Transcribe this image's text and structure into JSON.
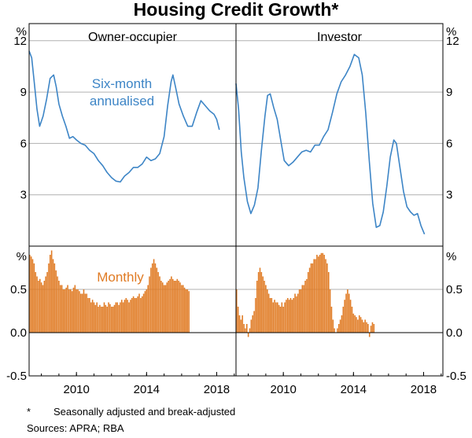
{
  "chart_data": {
    "type": "line+bar",
    "title": "Housing Credit Growth*",
    "footnote_marker": "*",
    "footnote": "Seasonally adjusted and break-adjusted",
    "sources": "Sources: APRA; RBA",
    "x_ticks": [
      "2010",
      "2014",
      "2018"
    ],
    "x_range": [
      2007.3,
      2019.1
    ],
    "panels": {
      "top": {
        "unit": "%",
        "ylim": [
          0,
          13
        ],
        "yticks": [
          "3",
          "6",
          "9",
          "12"
        ],
        "ytick_values": [
          3,
          6,
          9,
          12
        ],
        "annotation": "Six-month annualised",
        "annotation_lines": [
          "Six-month",
          "annualised"
        ],
        "series": [
          {
            "name": "Owner-occupier",
            "label": "Owner-occupier",
            "color": "#3d85c6",
            "points": [
              [
                2007.3,
                11.4
              ],
              [
                2007.45,
                11.0
              ],
              [
                2007.6,
                9.5
              ],
              [
                2007.75,
                8.0
              ],
              [
                2007.9,
                7.0
              ],
              [
                2008.1,
                7.6
              ],
              [
                2008.3,
                8.6
              ],
              [
                2008.5,
                9.8
              ],
              [
                2008.7,
                10.0
              ],
              [
                2008.85,
                9.3
              ],
              [
                2009.0,
                8.3
              ],
              [
                2009.2,
                7.6
              ],
              [
                2009.4,
                7.0
              ],
              [
                2009.6,
                6.3
              ],
              [
                2009.8,
                6.4
              ],
              [
                2010.0,
                6.2
              ],
              [
                2010.25,
                6.0
              ],
              [
                2010.5,
                5.9
              ],
              [
                2010.75,
                5.6
              ],
              [
                2011.0,
                5.4
              ],
              [
                2011.25,
                5.0
              ],
              [
                2011.5,
                4.7
              ],
              [
                2011.75,
                4.3
              ],
              [
                2012.0,
                4.0
              ],
              [
                2012.25,
                3.8
              ],
              [
                2012.5,
                3.75
              ],
              [
                2012.75,
                4.1
              ],
              [
                2013.0,
                4.3
              ],
              [
                2013.25,
                4.6
              ],
              [
                2013.5,
                4.6
              ],
              [
                2013.75,
                4.8
              ],
              [
                2014.0,
                5.2
              ],
              [
                2014.25,
                5.0
              ],
              [
                2014.5,
                5.1
              ],
              [
                2014.75,
                5.4
              ],
              [
                2015.0,
                6.4
              ],
              [
                2015.2,
                8.2
              ],
              [
                2015.4,
                9.6
              ],
              [
                2015.5,
                10.0
              ],
              [
                2015.65,
                9.3
              ],
              [
                2015.85,
                8.3
              ],
              [
                2016.1,
                7.6
              ],
              [
                2016.35,
                7.0
              ],
              [
                2016.6,
                7.0
              ],
              [
                2016.85,
                7.8
              ],
              [
                2017.1,
                8.5
              ],
              [
                2017.35,
                8.2
              ],
              [
                2017.6,
                7.9
              ],
              [
                2017.85,
                7.7
              ],
              [
                2018.0,
                7.4
              ],
              [
                2018.15,
                6.8
              ]
            ]
          },
          {
            "name": "Investor",
            "label": "Investor",
            "color": "#3d85c6",
            "points": [
              [
                2007.3,
                9.5
              ],
              [
                2007.45,
                8.0
              ],
              [
                2007.6,
                5.5
              ],
              [
                2007.75,
                4.0
              ],
              [
                2007.95,
                2.6
              ],
              [
                2008.15,
                1.9
              ],
              [
                2008.35,
                2.4
              ],
              [
                2008.55,
                3.4
              ],
              [
                2008.75,
                5.6
              ],
              [
                2008.95,
                7.6
              ],
              [
                2009.1,
                8.8
              ],
              [
                2009.25,
                8.9
              ],
              [
                2009.45,
                8.1
              ],
              [
                2009.65,
                7.4
              ],
              [
                2009.85,
                6.2
              ],
              [
                2010.05,
                5.0
              ],
              [
                2010.3,
                4.7
              ],
              [
                2010.55,
                4.9
              ],
              [
                2010.8,
                5.2
              ],
              [
                2011.05,
                5.5
              ],
              [
                2011.3,
                5.6
              ],
              [
                2011.55,
                5.5
              ],
              [
                2011.8,
                5.9
              ],
              [
                2012.05,
                5.9
              ],
              [
                2012.3,
                6.4
              ],
              [
                2012.55,
                6.8
              ],
              [
                2012.8,
                7.8
              ],
              [
                2013.05,
                8.9
              ],
              [
                2013.3,
                9.6
              ],
              [
                2013.55,
                10.0
              ],
              [
                2013.8,
                10.5
              ],
              [
                2014.05,
                11.2
              ],
              [
                2014.3,
                11.0
              ],
              [
                2014.5,
                10.0
              ],
              [
                2014.7,
                7.8
              ],
              [
                2014.9,
                5.0
              ],
              [
                2015.1,
                2.5
              ],
              [
                2015.3,
                1.1
              ],
              [
                2015.5,
                1.2
              ],
              [
                2015.7,
                2.0
              ],
              [
                2015.9,
                3.5
              ],
              [
                2016.1,
                5.2
              ],
              [
                2016.3,
                6.2
              ],
              [
                2016.45,
                6.0
              ],
              [
                2016.65,
                4.6
              ],
              [
                2016.85,
                3.2
              ],
              [
                2017.05,
                2.3
              ],
              [
                2017.25,
                2.0
              ],
              [
                2017.45,
                1.8
              ],
              [
                2017.65,
                1.9
              ],
              [
                2017.85,
                1.2
              ],
              [
                2018.05,
                0.7
              ]
            ]
          }
        ]
      },
      "bottom": {
        "unit": "%",
        "ylim": [
          -0.5,
          1.0
        ],
        "yticks": [
          "-0.5",
          "0.0",
          "0.5"
        ],
        "ytick_values": [
          -0.5,
          0.0,
          0.5
        ],
        "annotation": "Monthly",
        "series": [
          {
            "name": "Owner-occupier monthly",
            "color": "#e07b24",
            "type": "bar",
            "start_year": 2007.3,
            "step_years": 0.0833,
            "values": [
              0.9,
              0.88,
              0.85,
              0.8,
              0.7,
              0.65,
              0.6,
              0.62,
              0.58,
              0.55,
              0.6,
              0.65,
              0.7,
              0.8,
              0.9,
              0.95,
              0.85,
              0.8,
              0.72,
              0.65,
              0.6,
              0.55,
              0.55,
              0.5,
              0.5,
              0.52,
              0.55,
              0.5,
              0.5,
              0.48,
              0.52,
              0.55,
              0.5,
              0.5,
              0.48,
              0.45,
              0.45,
              0.5,
              0.45,
              0.45,
              0.4,
              0.4,
              0.35,
              0.38,
              0.35,
              0.32,
              0.35,
              0.3,
              0.32,
              0.3,
              0.3,
              0.35,
              0.32,
              0.3,
              0.35,
              0.33,
              0.3,
              0.3,
              0.32,
              0.35,
              0.35,
              0.32,
              0.35,
              0.38,
              0.35,
              0.38,
              0.4,
              0.38,
              0.35,
              0.38,
              0.4,
              0.42,
              0.4,
              0.4,
              0.42,
              0.45,
              0.4,
              0.42,
              0.45,
              0.48,
              0.5,
              0.55,
              0.65,
              0.75,
              0.8,
              0.85,
              0.8,
              0.75,
              0.7,
              0.65,
              0.6,
              0.58,
              0.55,
              0.55,
              0.58,
              0.6,
              0.62,
              0.65,
              0.62,
              0.6,
              0.6,
              0.62,
              0.6,
              0.58,
              0.55,
              0.55,
              0.52,
              0.5,
              0.5,
              0.48
            ]
          },
          {
            "name": "Investor monthly",
            "color": "#e07b24",
            "type": "bar",
            "start_year": 2007.3,
            "step_years": 0.0833,
            "values": [
              0.5,
              0.3,
              0.2,
              0.15,
              0.2,
              0.1,
              0.05,
              0.1,
              -0.05,
              0.05,
              0.15,
              0.2,
              0.25,
              0.4,
              0.6,
              0.7,
              0.75,
              0.7,
              0.65,
              0.6,
              0.55,
              0.5,
              0.45,
              0.4,
              0.4,
              0.35,
              0.38,
              0.35,
              0.35,
              0.32,
              0.3,
              0.35,
              0.3,
              0.35,
              0.38,
              0.4,
              0.38,
              0.4,
              0.38,
              0.4,
              0.45,
              0.42,
              0.45,
              0.5,
              0.5,
              0.55,
              0.55,
              0.6,
              0.62,
              0.7,
              0.75,
              0.8,
              0.8,
              0.85,
              0.85,
              0.9,
              0.88,
              0.9,
              0.92,
              0.92,
              0.9,
              0.85,
              0.8,
              0.7,
              0.5,
              0.3,
              0.15,
              0.05,
              0.0,
              0.05,
              0.1,
              0.15,
              0.2,
              0.3,
              0.38,
              0.45,
              0.5,
              0.45,
              0.38,
              0.3,
              0.22,
              0.2,
              0.18,
              0.15,
              0.2,
              0.18,
              0.15,
              0.12,
              0.15,
              0.12,
              0.1,
              -0.05,
              0.08,
              0.12,
              0.1
            ]
          }
        ]
      }
    }
  }
}
